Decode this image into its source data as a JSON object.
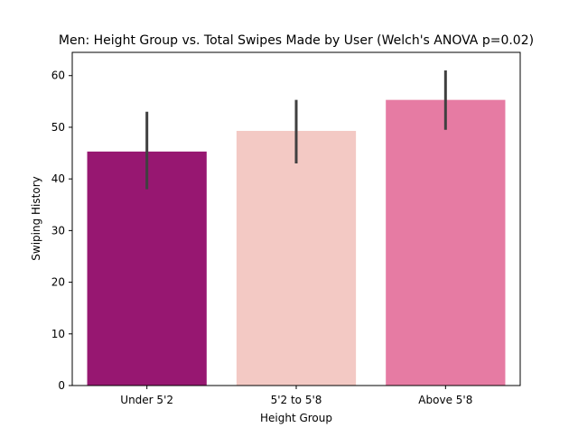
{
  "chart_data": {
    "type": "bar",
    "title": "Men: Height Group vs. Total Swipes Made by User (Welch's ANOVA p=0.02)",
    "xlabel": "Height Group",
    "ylabel": "Swiping History",
    "categories": [
      "Under 5'2",
      "5'2 to 5'8",
      "Above 5'8"
    ],
    "values": [
      45.3,
      49.3,
      55.3
    ],
    "error_bars": [
      {
        "low": 38.0,
        "high": 53.0
      },
      {
        "low": 43.0,
        "high": 55.3
      },
      {
        "low": 49.5,
        "high": 61.0
      }
    ],
    "colors": [
      "#971771",
      "#f3c9c4",
      "#e67ba3"
    ],
    "error_color": "#404040",
    "ylim": [
      0,
      64.5
    ],
    "yticks": [
      0,
      10,
      20,
      30,
      40,
      50,
      60
    ],
    "grid": false,
    "legend": "none"
  }
}
